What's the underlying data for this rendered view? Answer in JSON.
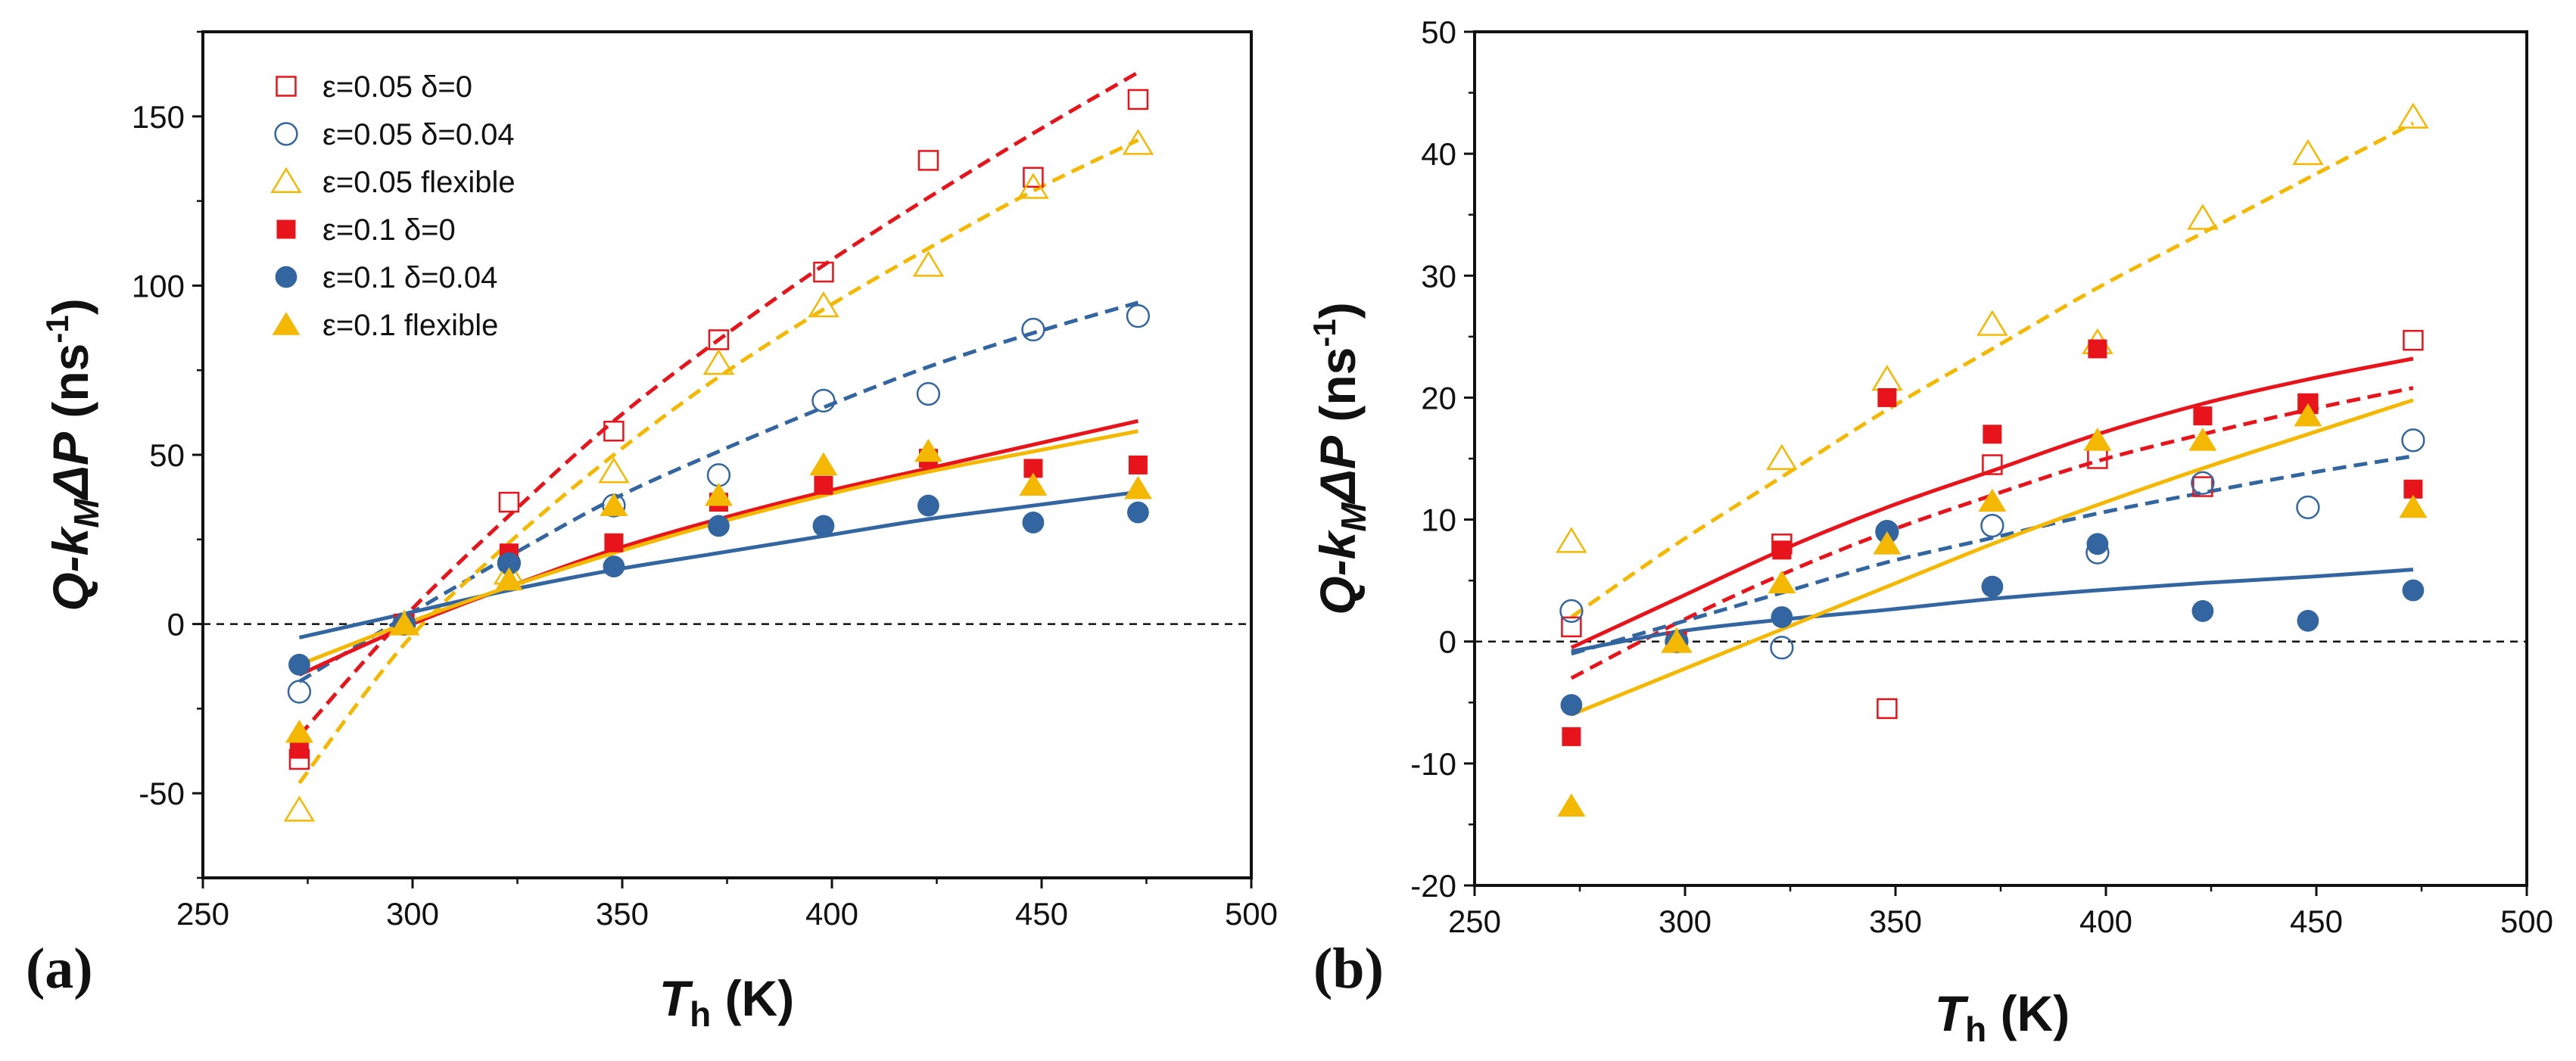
{
  "figure": {
    "panel_a": "(a)",
    "panel_b": "(b)"
  },
  "colors": {
    "red": "#e8141b",
    "blue": "#3366a0",
    "yellow": "#f5b800"
  },
  "chart_data": [
    {
      "type": "scatter",
      "panel": "(a)",
      "xlabel": "T_h (K)",
      "xlabel_main": "T",
      "xlabel_sub": "h",
      "xlabel_unit": " (K)",
      "ylabel": "Q-k_M ΔP (ns-1)",
      "ylabel_parts": {
        "q": "Q-",
        "k": "k",
        "sub": "M",
        "delta": "ΔP",
        "unit": " (ns",
        "sup": "-1",
        "close": ")"
      },
      "xlim": [
        250,
        500
      ],
      "ylim": [
        -75,
        175
      ],
      "xticks": [
        250,
        300,
        350,
        400,
        450,
        500
      ],
      "yticks": [
        -50,
        0,
        50,
        100,
        150
      ],
      "legend_position": "top-left",
      "reference_line": 0,
      "x": [
        273,
        298,
        323,
        348,
        373,
        398,
        423,
        448,
        473
      ],
      "series": [
        {
          "name": "ε=0.05 δ=0",
          "color": "red",
          "marker": "square",
          "filled": false,
          "values": [
            -40,
            0,
            36,
            57,
            84,
            104,
            137,
            132,
            155
          ]
        },
        {
          "name": "ε=0.05 δ=0.04",
          "color": "blue",
          "marker": "circle",
          "filled": false,
          "values": [
            -20,
            0,
            18,
            35,
            44,
            66,
            68,
            87,
            91
          ]
        },
        {
          "name": "ε=0.05 flexible",
          "color": "yellow",
          "marker": "triangle",
          "filled": false,
          "values": [
            -55,
            0,
            15,
            45,
            77,
            94,
            106,
            129,
            142
          ]
        },
        {
          "name": "ε=0.1  δ=0",
          "color": "red",
          "marker": "square",
          "filled": true,
          "values": [
            -37,
            0,
            21,
            24,
            36,
            41,
            49,
            46,
            47
          ]
        },
        {
          "name": "ε=0.1  δ=0.04",
          "color": "blue",
          "marker": "circle",
          "filled": true,
          "values": [
            -12,
            0,
            18,
            17,
            29,
            29,
            35,
            30,
            33
          ]
        },
        {
          "name": "ε=0.1  flexible",
          "color": "yellow",
          "marker": "triangle",
          "filled": true,
          "values": [
            -32,
            0,
            13,
            35,
            38,
            47,
            51,
            41,
            40
          ]
        }
      ],
      "fits": [
        {
          "name": "ε=0.05 δ=0 fit",
          "color": "red",
          "style": "dashed",
          "x": [
            273,
            298,
            323,
            348,
            373,
            398,
            423,
            448,
            473
          ],
          "y": [
            -33,
            2,
            32,
            60,
            84,
            106,
            126,
            145,
            163
          ]
        },
        {
          "name": "ε=0.05 δ=0.04 fit",
          "color": "blue",
          "style": "dashed",
          "x": [
            273,
            298,
            323,
            348,
            373,
            398,
            423,
            448,
            473
          ],
          "y": [
            -17,
            2,
            20,
            37,
            51,
            64,
            76,
            86,
            95
          ]
        },
        {
          "name": "ε=0.05 flexible fit",
          "color": "yellow",
          "style": "dashed",
          "x": [
            273,
            298,
            323,
            348,
            373,
            398,
            423,
            448,
            473
          ],
          "y": [
            -47,
            -6,
            24,
            50,
            73,
            93,
            111,
            128,
            143
          ]
        },
        {
          "name": "ε=0.1 δ=0 fit",
          "color": "red",
          "style": "solid",
          "x": [
            273,
            298,
            323,
            348,
            373,
            398,
            423,
            448,
            473
          ],
          "y": [
            -15,
            -1,
            11,
            22,
            31,
            39,
            46,
            53,
            60
          ]
        },
        {
          "name": "ε=0.1 δ=0.04 fit",
          "color": "blue",
          "style": "solid",
          "x": [
            273,
            298,
            323,
            348,
            373,
            398,
            423,
            448,
            473
          ],
          "y": [
            -4,
            3,
            10,
            16,
            21,
            26,
            31,
            35,
            39
          ]
        },
        {
          "name": "ε=0.1 flexible fit",
          "color": "yellow",
          "style": "solid",
          "x": [
            273,
            298,
            323,
            348,
            373,
            398,
            423,
            448,
            473
          ],
          "y": [
            -12,
            0,
            11,
            21,
            30,
            38,
            45,
            51,
            57
          ]
        }
      ]
    },
    {
      "type": "scatter",
      "panel": "(b)",
      "xlabel": "T_h (K)",
      "xlabel_main": "T",
      "xlabel_sub": "h",
      "xlabel_unit": " (K)",
      "ylabel": "Q-k_M ΔP (ns-1)",
      "ylabel_parts": {
        "q": "Q-",
        "k": "k",
        "sub": "M",
        "delta": "ΔP",
        "unit": " (ns",
        "sup": "-1",
        "close": ")"
      },
      "xlim": [
        250,
        500
      ],
      "ylim": [
        -20,
        50
      ],
      "xticks": [
        250,
        300,
        350,
        400,
        450,
        500
      ],
      "yticks": [
        -20,
        -10,
        0,
        10,
        20,
        30,
        40,
        50
      ],
      "reference_line": 0,
      "x": [
        273,
        298,
        323,
        348,
        373,
        398,
        423,
        448,
        473
      ],
      "series": [
        {
          "name": "ε=0.05 δ=0",
          "color": "red",
          "marker": "square",
          "filled": false,
          "values": [
            1.2,
            0,
            8,
            -5.5,
            14.5,
            15,
            12.7,
            19.5,
            24.7
          ]
        },
        {
          "name": "ε=0.05 δ=0.04",
          "color": "blue",
          "marker": "circle",
          "filled": false,
          "values": [
            2.5,
            0,
            -0.5,
            9,
            9.5,
            7.3,
            13,
            11,
            16.5
          ]
        },
        {
          "name": "ε=0.05 flexible",
          "color": "yellow",
          "marker": "triangle",
          "filled": false,
          "values": [
            8.2,
            0,
            15,
            21.5,
            26,
            24.5,
            34.7,
            40,
            43
          ]
        },
        {
          "name": "ε=0.1  δ=0",
          "color": "red",
          "marker": "square",
          "filled": true,
          "values": [
            -7.8,
            0,
            7.5,
            20,
            17,
            24,
            18.5,
            19.5,
            12.5
          ]
        },
        {
          "name": "ε=0.1  δ=0.04",
          "color": "blue",
          "marker": "circle",
          "filled": true,
          "values": [
            -5.2,
            0,
            2,
            9,
            4.5,
            8,
            2.5,
            1.7,
            4.2
          ]
        },
        {
          "name": "ε=0.1  flexible",
          "color": "yellow",
          "marker": "triangle",
          "filled": true,
          "values": [
            -13.5,
            0,
            4.8,
            8,
            11.5,
            16.5,
            16.5,
            18.5,
            11
          ]
        }
      ],
      "fits": [
        {
          "name": "ε=0.05 δ=0 fit",
          "color": "red",
          "style": "dashed",
          "x": [
            273,
            298,
            323,
            348,
            373,
            398,
            423,
            448,
            473
          ],
          "y": [
            -3,
            1.5,
            5.5,
            9,
            12,
            14.8,
            17,
            19,
            20.8
          ]
        },
        {
          "name": "ε=0.05 δ=0.04 fit",
          "color": "blue",
          "style": "dashed",
          "x": [
            273,
            298,
            323,
            348,
            373,
            398,
            423,
            448,
            473
          ],
          "y": [
            -1,
            1.5,
            4,
            6.5,
            8.5,
            10.5,
            12.2,
            13.8,
            15.2
          ]
        },
        {
          "name": "ε=0.05 flexible fit",
          "color": "yellow",
          "style": "dashed",
          "x": [
            273,
            298,
            323,
            348,
            373,
            398,
            423,
            448,
            473
          ],
          "y": [
            2,
            8,
            13.5,
            19,
            24,
            29,
            33.5,
            38,
            42.5
          ]
        },
        {
          "name": "ε=0.1 δ=0 fit",
          "color": "red",
          "style": "solid",
          "x": [
            273,
            298,
            323,
            348,
            373,
            398,
            423,
            448,
            473
          ],
          "y": [
            -0.5,
            3.5,
            7.5,
            11,
            14,
            17,
            19.5,
            21.5,
            23.2
          ]
        },
        {
          "name": "ε=0.1 δ=0.04 fit",
          "color": "blue",
          "style": "solid",
          "x": [
            273,
            298,
            323,
            348,
            373,
            398,
            423,
            448,
            473
          ],
          "y": [
            -0.8,
            0.8,
            1.8,
            2.6,
            3.5,
            4.2,
            4.8,
            5.3,
            5.9
          ]
        },
        {
          "name": "ε=0.1 flexible fit",
          "color": "yellow",
          "style": "solid",
          "x": [
            273,
            298,
            323,
            348,
            373,
            398,
            423,
            448,
            473
          ],
          "y": [
            -6,
            -2.5,
            1,
            4.5,
            8,
            11.2,
            14.2,
            17,
            19.8
          ]
        }
      ]
    }
  ]
}
